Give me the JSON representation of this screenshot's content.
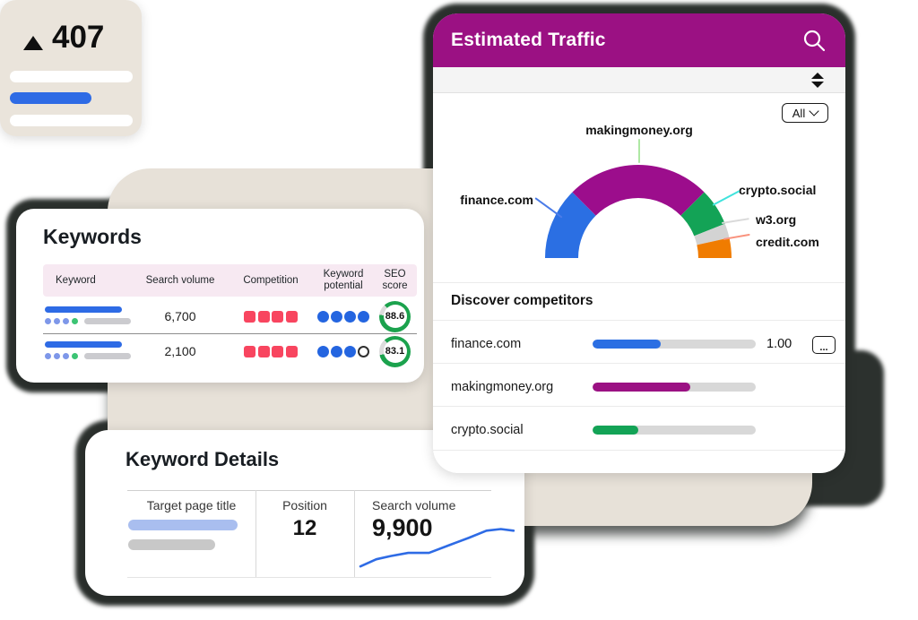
{
  "keywords_card": {
    "title": "Keywords",
    "columns": [
      "Keyword",
      "Search volume",
      "Competition",
      "Keyword potential",
      "SEO score"
    ],
    "rows": [
      {
        "search_volume": "6,700",
        "competition": {
          "filled": 4,
          "total": 4
        },
        "potential": {
          "filled": 4,
          "total": 4
        },
        "seo_score": "88.6",
        "seo_score_pct": 88.6
      },
      {
        "search_volume": "2,100",
        "competition": {
          "filled": 4,
          "total": 4
        },
        "potential": {
          "filled": 3,
          "total": 4
        },
        "seo_score": "83.1",
        "seo_score_pct": 83.1
      }
    ],
    "colors": {
      "header_bg": "#f7e9f2",
      "competition": "#f8455f",
      "potential": "#2465e0",
      "ring_green": "#1ba24d",
      "ring_track": "#dcdcdc"
    }
  },
  "traffic_card": {
    "title": "Estimated Traffic",
    "filter_label": "All",
    "discover": {
      "heading": "Discover competitors",
      "more_label": "...",
      "rows": [
        {
          "label": "finance.com",
          "value": "1.00",
          "fill": 0.42,
          "color": "#2b6fe3"
        },
        {
          "label": "makingmoney.org",
          "value": null,
          "fill": 0.6,
          "color": "#9b1183"
        },
        {
          "label": "crypto.social",
          "value": null,
          "fill": 0.28,
          "color": "#13a356"
        }
      ]
    },
    "colors": {
      "header_bg": "#9b1183",
      "toolbar_bg": "#f4f4f4"
    }
  },
  "details_card": {
    "title": "Keyword Details",
    "fields": [
      {
        "label": "Target page title",
        "value": null
      },
      {
        "label": "Position",
        "value": "12"
      },
      {
        "label": "Search volume",
        "value": "9,900"
      }
    ]
  },
  "badge_card": {
    "direction": "up",
    "value": "407",
    "bg": "#eae4db",
    "accent": "#2e6be5"
  },
  "chart_data": [
    {
      "type": "pie",
      "variant": "half-donut",
      "title": "Estimated Traffic share by domain",
      "legend_position": "callout-labels",
      "series": [
        {
          "name": "finance.com",
          "value": 25,
          "color": "#2b6fe3",
          "line_color": "#4a7be8"
        },
        {
          "name": "makingmoney.org",
          "value": 50,
          "color": "#9c0d8c",
          "line_color": "#aee8a4"
        },
        {
          "name": "crypto.social",
          "value": 13,
          "color": "#13a356",
          "line_color": "#3fe3dc"
        },
        {
          "name": "w3.org",
          "value": 5,
          "color": "#d3d3d3",
          "line_color": "#d9d9d9"
        },
        {
          "name": "credit.com",
          "value": 7,
          "color": "#f07c00",
          "line_color": "#f9927d"
        }
      ]
    },
    {
      "type": "line",
      "title": "Search volume trend",
      "color": "#2e6be5",
      "x": [
        0,
        10,
        19,
        30,
        43,
        56,
        68,
        79,
        88,
        96
      ],
      "y": [
        10,
        19,
        23,
        27,
        27,
        37,
        46,
        55,
        57,
        55
      ],
      "ylabel": "Search volume",
      "grid": false
    }
  ]
}
